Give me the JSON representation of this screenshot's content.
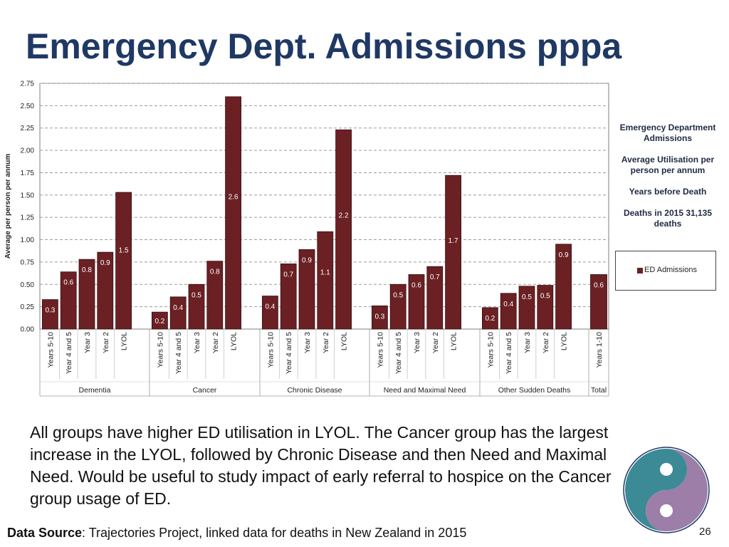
{
  "title": "Emergency Dept. Admissions pppa",
  "legend": {
    "heading": "Emergency Department Admissions",
    "measure": "Average Utilisation per person per annum",
    "axis_note": "Years before Death",
    "population": "Deaths in 2015 31,135 deaths",
    "series_label": "ED Admissions"
  },
  "summary": "All groups have higher ED utilisation in LYOL. The Cancer group has the largest increase in the LYOL, followed by Chronic Disease and then Need and Maximal Need. Would be useful to study impact of early referral to hospice on the Cancer group usage of ED.",
  "footer": {
    "source_label": "Data Source",
    "source_text": ": Trajectories Project, linked data for deaths in New Zealand in 2015"
  },
  "page_number": "26",
  "colors": {
    "bar": "#6b2024",
    "title": "#1f3864",
    "logo_teal": "#3b8a96",
    "logo_purple": "#9c7ea8"
  },
  "chart_data": {
    "type": "bar",
    "title": "",
    "xlabel": "",
    "ylabel": "Average per person per annum",
    "ylim": [
      0,
      2.75
    ],
    "yticks": [
      "0.00",
      "0.25",
      "0.50",
      "0.75",
      "1.00",
      "1.25",
      "1.50",
      "1.75",
      "2.00",
      "2.25",
      "2.50",
      "2.75"
    ],
    "series": [
      {
        "name": "ED Admissions",
        "color": "#6b2024"
      }
    ],
    "groups": [
      {
        "name": "Dementia",
        "categories": [
          "Years 5-10",
          "Year 4 and 5",
          "Year 3",
          "Year 2",
          "LYOL"
        ],
        "values": [
          0.33,
          0.64,
          0.78,
          0.86,
          1.53
        ],
        "labels": [
          "0.3",
          "0.6",
          "0.8",
          "0.9",
          "1.5"
        ]
      },
      {
        "name": "Cancer",
        "categories": [
          "Years 5-10",
          "Year 4 and 5",
          "Year 3",
          "Year 2",
          "LYOL"
        ],
        "values": [
          0.19,
          0.36,
          0.5,
          0.76,
          2.6
        ],
        "labels": [
          "0.2",
          "0.4",
          "0.5",
          "0.8",
          "2.6"
        ]
      },
      {
        "name": "Chronic Disease",
        "categories": [
          "Years 5-10",
          "Year 4 and 5",
          "Year 3",
          "Year 2",
          "LYOL"
        ],
        "values": [
          0.37,
          0.73,
          0.89,
          1.09,
          2.23
        ],
        "labels": [
          "0.4",
          "0.7",
          "0.9",
          "1.1",
          "2.2"
        ]
      },
      {
        "name": "Need and Maximal Need",
        "categories": [
          "Years 5-10",
          "Year 4 and 5",
          "Year 3",
          "Year 2",
          "LYOL"
        ],
        "values": [
          0.26,
          0.5,
          0.61,
          0.7,
          1.72
        ],
        "labels": [
          "0.3",
          "0.5",
          "0.6",
          "0.7",
          "1.7"
        ]
      },
      {
        "name": "Other Sudden Deaths",
        "categories": [
          "Years 5-10",
          "Year 4 and 5",
          "Year 3",
          "Year 2",
          "LYOL"
        ],
        "values": [
          0.24,
          0.4,
          0.48,
          0.49,
          0.95
        ],
        "labels": [
          "0.2",
          "0.4",
          "0.5",
          "0.5",
          "0.9"
        ]
      },
      {
        "name": "Total",
        "categories": [
          "Years 1-10"
        ],
        "values": [
          0.61
        ],
        "labels": [
          "0.6"
        ]
      }
    ]
  }
}
